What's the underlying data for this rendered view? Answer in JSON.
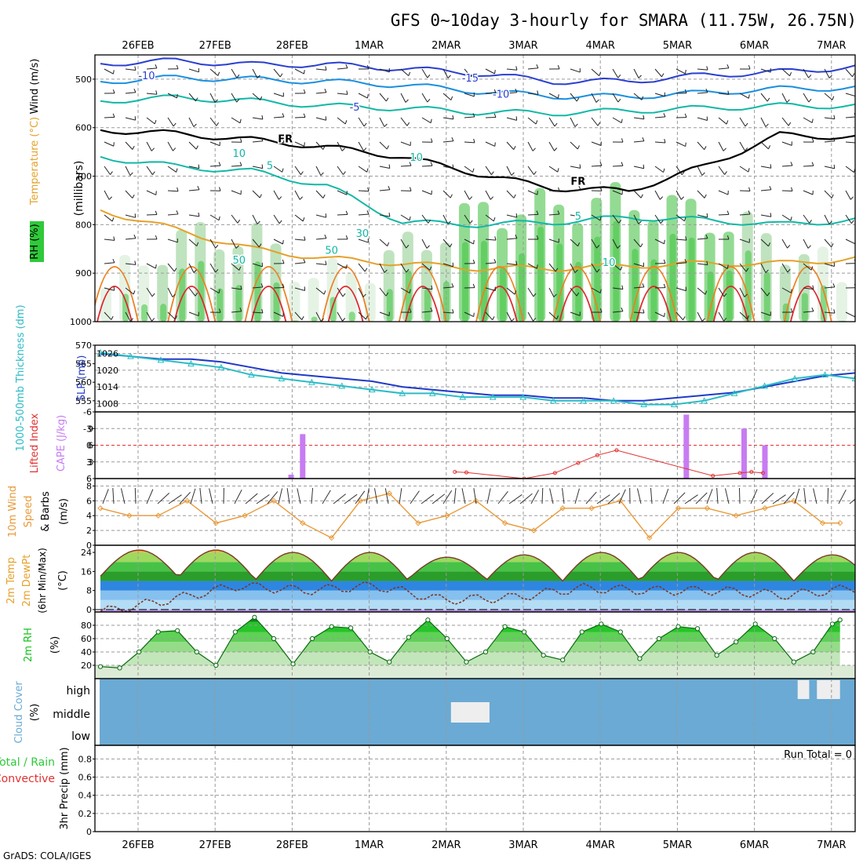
{
  "title": "GFS 0~10day 3-hourly for SMARA (11.75W, 26.75N)",
  "footer": "GrADS: COLA/IGES",
  "colors": {
    "rh_green": "#2fc93a",
    "wind_blue": "#2a3fd0",
    "temp_teal": "#11b8a6",
    "freezing": "#000000",
    "temp_orange": "#e5a12a",
    "temp_red": "#e0262d",
    "cape_purple": "#c77cf2",
    "lifted_red": "#e03030",
    "slp_blue": "#2039c8",
    "thick_cyan": "#2bbcc6",
    "wind10_orange": "#e89a3a",
    "cloud_blue": "#6aaad4",
    "rh2m_green": "#13c21e"
  },
  "chart_data": [
    {
      "id": "cross_section",
      "type": "heatmap",
      "x_tick_labels": [
        "26FEB",
        "27FEB",
        "28FEB",
        "1MAR",
        "2MAR",
        "3MAR",
        "4MAR",
        "5MAR",
        "6MAR",
        "7MAR"
      ],
      "ylabel": "(millibars)",
      "y_side_labels": [
        "Wind (m/s)",
        "Temperature (°C)",
        "RH (%)"
      ],
      "y_ticks": [
        500,
        600,
        700,
        800,
        900,
        1000
      ],
      "ylim": [
        450,
        1000
      ],
      "contour_labels": [
        {
          "text": "-10",
          "t": 0.6,
          "p": 500
        },
        {
          "text": "-15",
          "t": 4.8,
          "p": 505
        },
        {
          "text": "-10",
          "t": 5.2,
          "p": 538
        },
        {
          "text": "-5",
          "t": 3.3,
          "p": 565
        },
        {
          "text": "FR",
          "t": 2.4,
          "p": 630
        },
        {
          "text": "FR",
          "t": 6.2,
          "p": 718
        },
        {
          "text": "5",
          "t": 2.2,
          "p": 685
        },
        {
          "text": "5",
          "t": 6.2,
          "p": 790
        },
        {
          "text": "10",
          "t": 6.6,
          "p": 885
        },
        {
          "text": "10",
          "t": 1.8,
          "p": 660
        },
        {
          "text": "10",
          "t": 4.1,
          "p": 668
        },
        {
          "text": "30",
          "t": 3.4,
          "p": 825
        },
        {
          "text": "50",
          "t": 1.8,
          "p": 880
        },
        {
          "text": "50",
          "t": 3.0,
          "p": 860
        }
      ],
      "isotherms": [
        {
          "label": "-15",
          "color": "#2a3fd0",
          "p": [
            468,
            462,
            470,
            470,
            478,
            488,
            505,
            504,
            492,
            485,
            475
          ]
        },
        {
          "label": "-10",
          "color": "#1a8fe0",
          "p": [
            505,
            497,
            500,
            505,
            512,
            525,
            535,
            536,
            528,
            520,
            518
          ]
        },
        {
          "label": "-5",
          "color": "#11b8a6",
          "p": [
            545,
            538,
            545,
            555,
            560,
            568,
            570,
            565,
            560,
            555,
            555
          ]
        },
        {
          "label": "FR",
          "color": "#000000",
          "p": [
            605,
            612,
            625,
            640,
            660,
            695,
            725,
            730,
            680,
            615,
            620
          ]
        },
        {
          "label": "5",
          "color": "#11b8a6",
          "p": [
            660,
            680,
            690,
            720,
            795,
            800,
            795,
            785,
            790,
            800,
            790
          ]
        },
        {
          "label": "10",
          "color": "#e5a12a",
          "p": [
            770,
            810,
            850,
            870,
            880,
            890,
            890,
            885,
            880,
            880,
            870
          ]
        }
      ],
      "rh_band_pct": [
        20,
        60,
        65,
        30,
        50,
        80,
        85,
        90,
        80,
        60,
        30
      ]
    },
    {
      "id": "slp_thickness",
      "type": "line",
      "ylabel_left": "1000-500mb Thickness (dm)",
      "ylabel_right": "SLP (mb)",
      "y_ticks_left": [
        555,
        560,
        565,
        570
      ],
      "y_ticks_right": [
        1008,
        1014,
        1020,
        1026
      ],
      "ylim_left": [
        552,
        570
      ],
      "series": [
        {
          "name": "SLP (mb)",
          "axis": "right",
          "values": [
            1026,
            1025,
            1024,
            1024,
            1023,
            1021,
            1019,
            1018,
            1017,
            1016,
            1014,
            1013,
            1012,
            1011,
            1011,
            1010,
            1010,
            1009,
            1009,
            1010,
            1011,
            1012,
            1014,
            1016,
            1018,
            1019
          ]
        },
        {
          "name": "1000-500mb Thickness (dm)",
          "axis": "left",
          "values": [
            568,
            567,
            566,
            565,
            564,
            562,
            561,
            560,
            559,
            558,
            557,
            557,
            556,
            556,
            556,
            555,
            555,
            555,
            554,
            554,
            555,
            557,
            559,
            561,
            562,
            561
          ]
        }
      ]
    },
    {
      "id": "cape_li",
      "type": "bar",
      "ylabel_left": "Lifted Index",
      "ylabel_right": "CAPE (J/kg)",
      "y_ticks_left": [
        -6,
        -3,
        0,
        3,
        6
      ],
      "y_ticks_right": [
        3,
        6,
        9
      ],
      "cape_bars": [
        {
          "t": 2.47,
          "value": 0.7
        },
        {
          "t": 2.62,
          "value": 8.0
        },
        {
          "t": 7.6,
          "value": 11.5
        },
        {
          "t": 8.35,
          "value": 9.0
        },
        {
          "t": 8.62,
          "value": 6.0
        }
      ],
      "lifted_index": [
        {
          "t": 4.6,
          "value": 4.8
        },
        {
          "t": 4.75,
          "value": 4.9
        },
        {
          "t": 5.5,
          "value": 6.0
        },
        {
          "t": 5.9,
          "value": 5.0
        },
        {
          "t": 6.2,
          "value": 3.2
        },
        {
          "t": 6.45,
          "value": 1.8
        },
        {
          "t": 6.7,
          "value": 0.9
        },
        {
          "t": 7.95,
          "value": 5.5
        },
        {
          "t": 8.3,
          "value": 5.0
        },
        {
          "t": 8.45,
          "value": 4.8
        },
        {
          "t": 8.6,
          "value": 5.0
        }
      ]
    },
    {
      "id": "wind10m",
      "type": "line",
      "ylabel": "10m Wind Speed & Barbs (m/s)",
      "y_ticks": [
        0,
        2,
        4,
        6,
        8
      ],
      "ylim": [
        0,
        9
      ],
      "x": [
        0,
        0.375,
        0.75,
        1.125,
        1.5,
        1.875,
        2.25,
        2.625,
        3.0,
        3.375,
        3.75,
        4.125,
        4.5,
        4.875,
        5.25,
        5.625,
        6.0,
        6.375,
        6.75,
        7.125,
        7.5,
        7.875,
        8.25,
        8.625,
        9.0,
        9.375,
        9.6
      ],
      "values": [
        5,
        4,
        4,
        6,
        3,
        4,
        6,
        3,
        1,
        6,
        7,
        3,
        4,
        6,
        3,
        2,
        5,
        5,
        6,
        1,
        5,
        5,
        4,
        5,
        6,
        3,
        3
      ]
    },
    {
      "id": "temp2m",
      "type": "area",
      "ylabel": "2m Temp 2m DewPt (6hr Min/Max) (°C)",
      "y_ticks": [
        0,
        8,
        16,
        24
      ],
      "ylim": [
        -1,
        27
      ],
      "temp_max": [
        25,
        25,
        24,
        24,
        22,
        23,
        24,
        24,
        24,
        23
      ],
      "temp_min": [
        14,
        13,
        12,
        12,
        13,
        12,
        12,
        12,
        12,
        12
      ],
      "dewpoint": [
        -1,
        4,
        10,
        8,
        10,
        4,
        5,
        9,
        8,
        8,
        6,
        9
      ]
    },
    {
      "id": "rh2m",
      "type": "area",
      "ylabel": "2m RH (%)",
      "y_ticks": [
        20,
        40,
        60,
        80
      ],
      "ylim": [
        0,
        100
      ],
      "x": [
        0,
        0.25,
        0.5,
        0.75,
        1.0,
        1.25,
        1.5,
        1.75,
        2.0,
        2.25,
        2.5,
        2.75,
        3.0,
        3.25,
        3.5,
        3.75,
        4.0,
        4.25,
        4.5,
        4.75,
        5.0,
        5.25,
        5.5,
        5.75,
        6.0,
        6.25,
        6.5,
        6.75,
        7.0,
        7.25,
        7.5,
        7.75,
        8.0,
        8.25,
        8.5,
        8.75,
        9.0,
        9.25,
        9.5,
        9.6
      ],
      "values": [
        18,
        16,
        40,
        70,
        72,
        40,
        20,
        70,
        92,
        60,
        22,
        60,
        78,
        76,
        40,
        25,
        62,
        88,
        60,
        25,
        40,
        78,
        70,
        35,
        28,
        70,
        82,
        70,
        30,
        60,
        78,
        75,
        35,
        55,
        82,
        60,
        25,
        40,
        82,
        88
      ]
    },
    {
      "id": "cloud_cover",
      "type": "heatmap",
      "ylabel": "Cloud Cover (%)",
      "row_labels": [
        "high",
        "middle",
        "low"
      ],
      "gaps": [
        {
          "row": "middle",
          "t0": 4.55,
          "t1": 5.05
        },
        {
          "row": "high",
          "t0": 9.05,
          "t1": 9.2
        },
        {
          "row": "high",
          "t0": 9.3,
          "t1": 9.6
        }
      ]
    },
    {
      "id": "precip3hr",
      "type": "bar",
      "ylabel": "3hr Precip (mm)",
      "legend_total": "Total / Rain",
      "legend_conv": "Convective",
      "annotation": "Run Total = 0",
      "y_ticks": [
        0,
        0.2,
        0.4,
        0.6,
        0.8
      ],
      "ylim": [
        0,
        0.95
      ],
      "values": []
    }
  ]
}
